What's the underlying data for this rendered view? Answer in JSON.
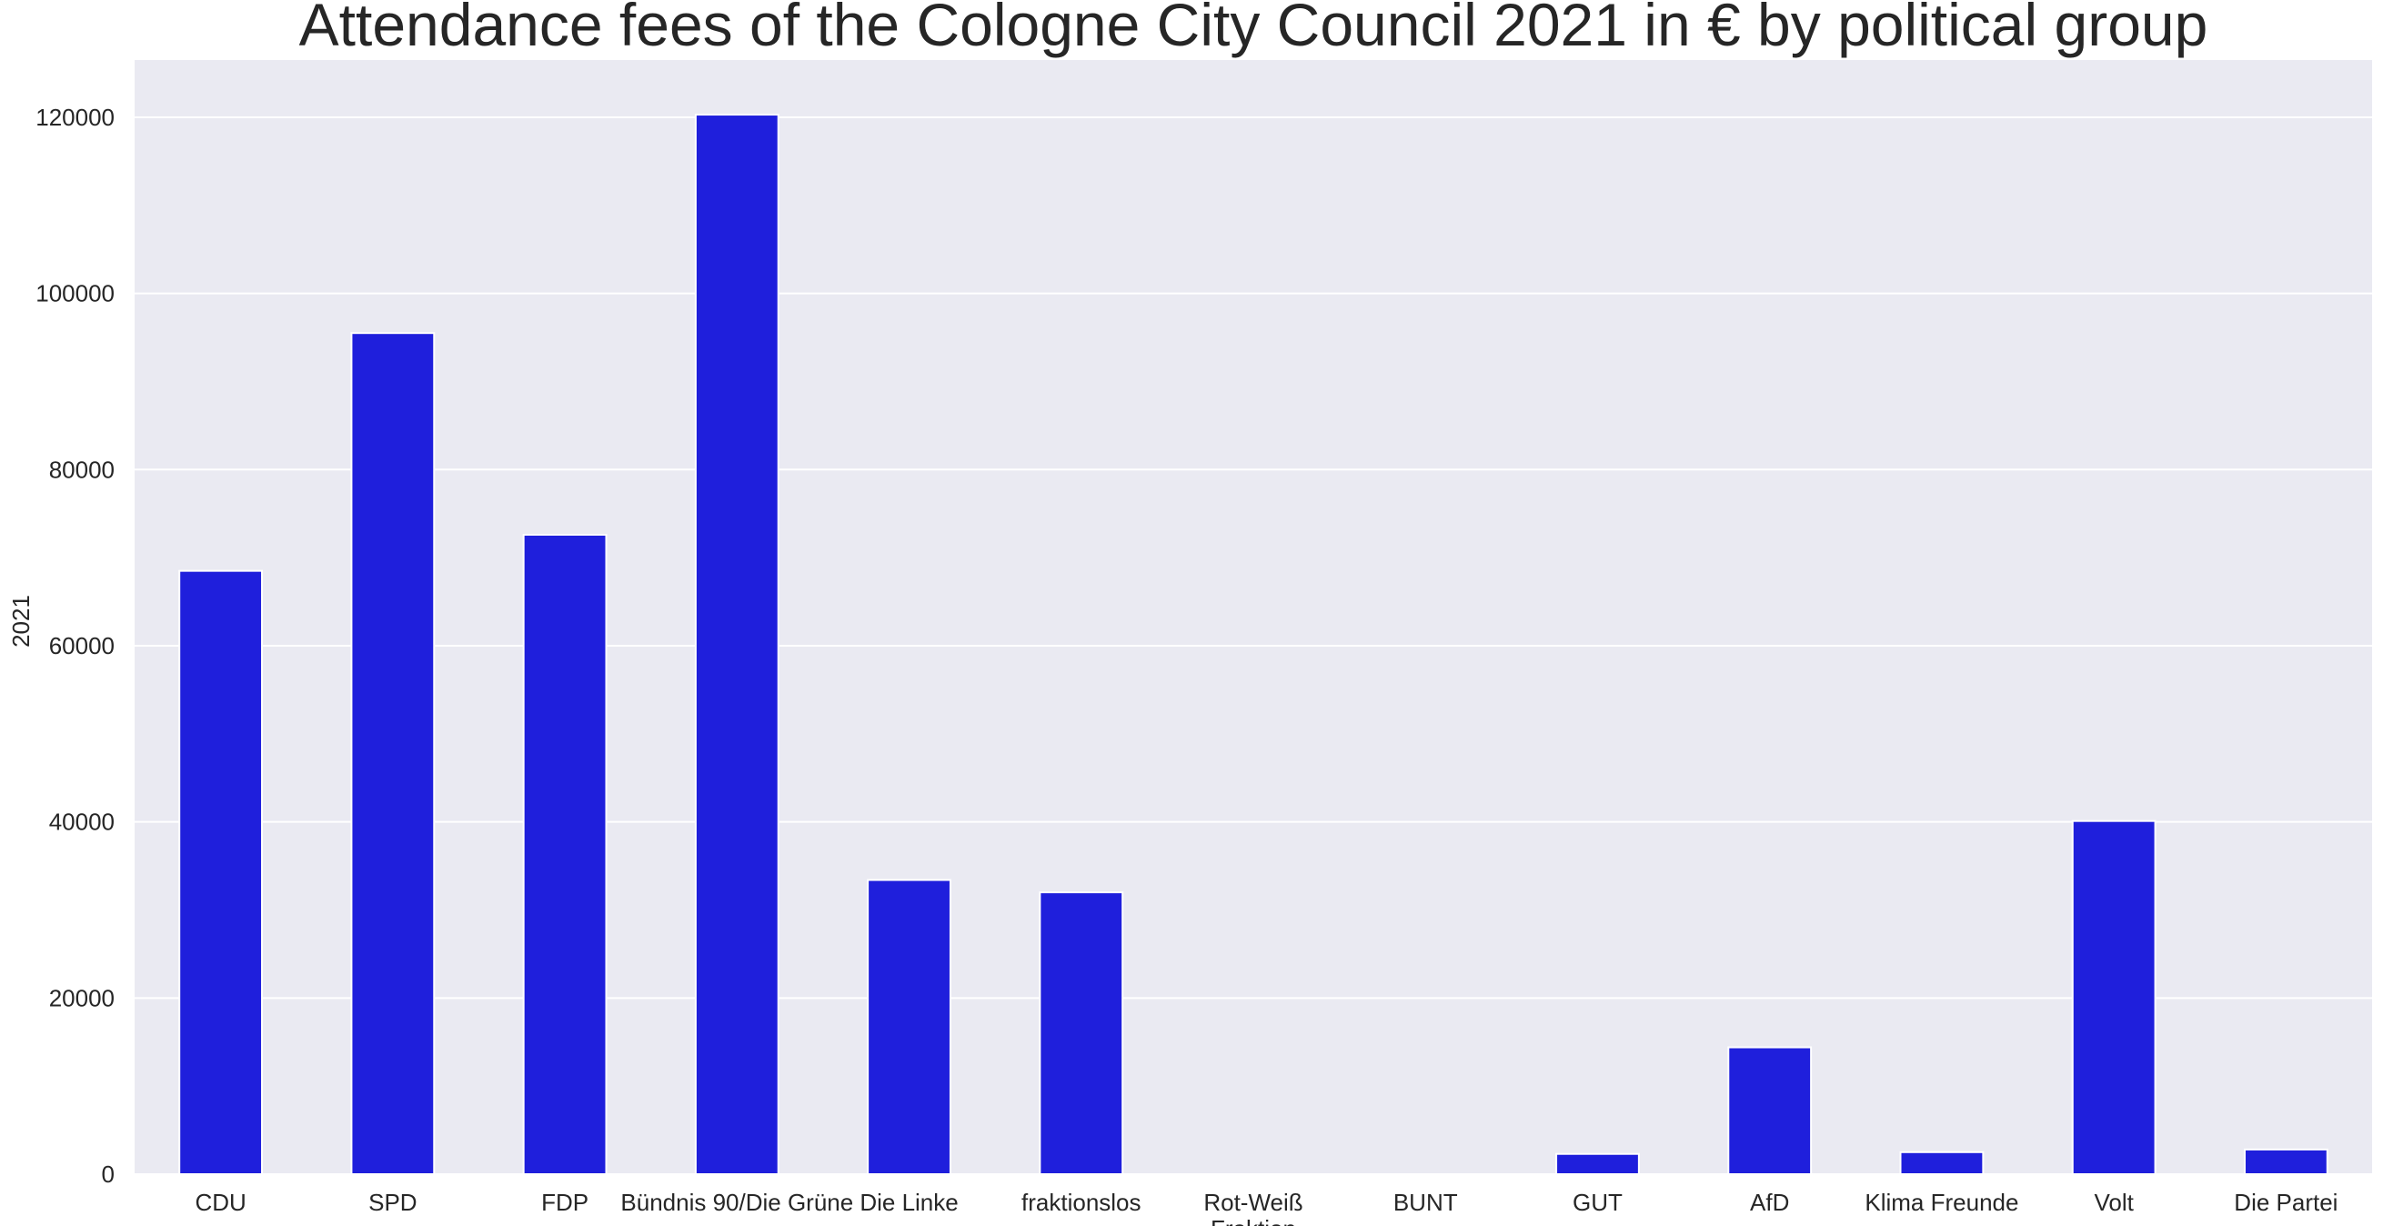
{
  "chart_data": {
    "type": "bar",
    "title": "Attendance fees of the Cologne City Council 2021 in € by political group",
    "xlabel": "Fraktion",
    "ylabel": "2021",
    "categories": [
      "CDU",
      "SPD",
      "FDP",
      "Bündnis 90/Die Grüne",
      "Die Linke",
      "fraktionslos",
      "Rot-Weiß",
      "BUNT",
      "GUT",
      "AfD",
      "Klima Freunde",
      "Volt",
      "Die Partei"
    ],
    "values": [
      68500,
      95500,
      72600,
      120300,
      33400,
      32000,
      0,
      0,
      2300,
      14400,
      2500,
      40100,
      2800
    ],
    "yticks": [
      0,
      20000,
      40000,
      60000,
      80000,
      100000,
      120000
    ],
    "ylim": [
      0,
      126500
    ],
    "grid": true,
    "legend": false,
    "colors": {
      "bar": "#1f1fdc",
      "plot_background": "#eaeaf2",
      "grid": "#ffffff",
      "text": "#262626"
    }
  }
}
